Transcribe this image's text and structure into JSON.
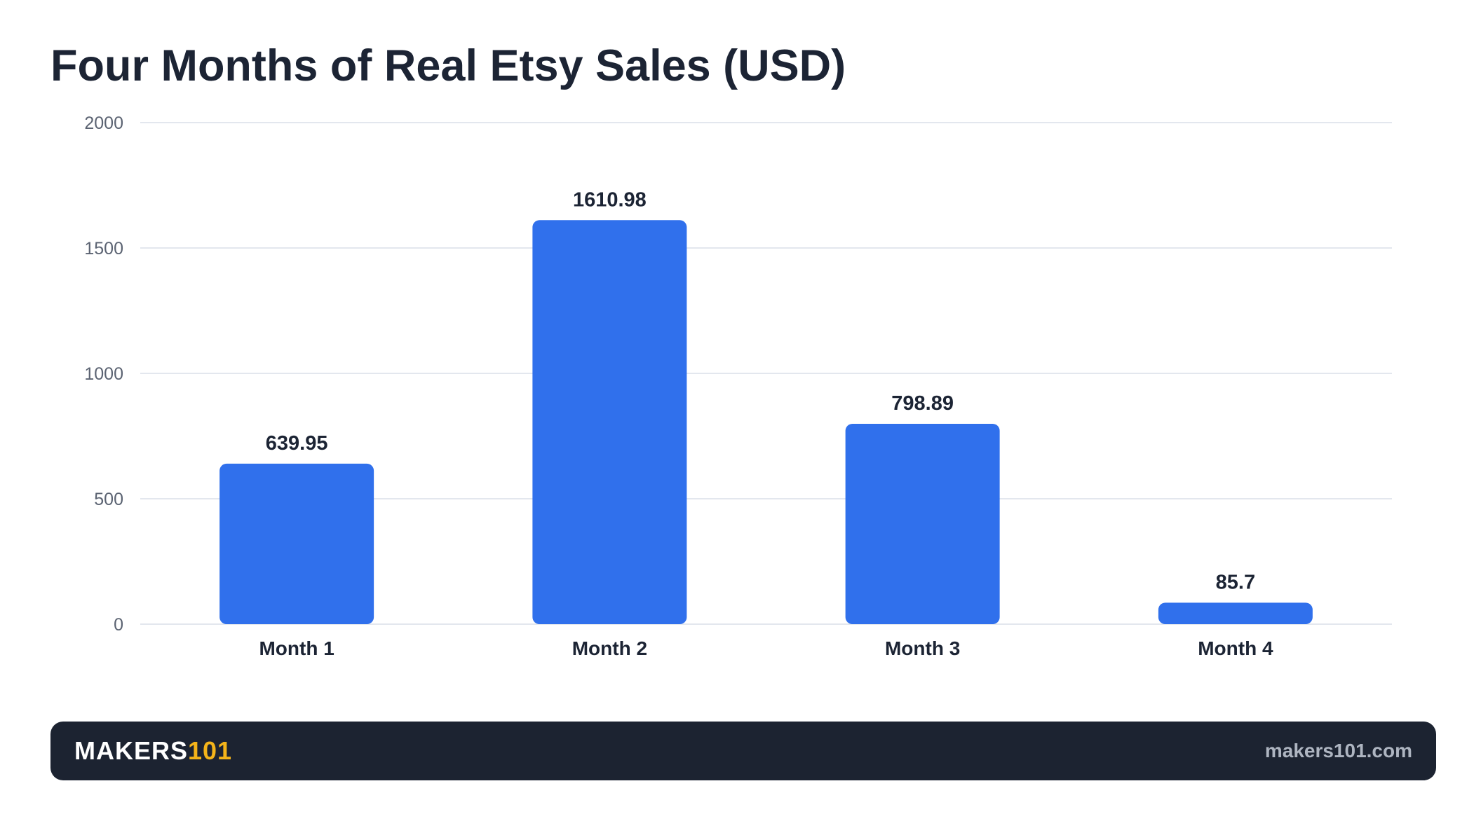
{
  "chart_data": {
    "type": "bar",
    "title": "Four Months of Real Etsy Sales (USD)",
    "categories": [
      "Month 1",
      "Month 2",
      "Month 3",
      "Month 4"
    ],
    "values": [
      639.95,
      1610.98,
      798.89,
      85.7
    ],
    "value_labels": [
      "639.95",
      "1610.98",
      "798.89",
      "85.7"
    ],
    "xlabel": "",
    "ylabel": "",
    "ylim": [
      0,
      2000
    ],
    "yticks": [
      0,
      500,
      1000,
      1500,
      2000
    ],
    "grid": true,
    "legend": "none",
    "bar_color": "#3070ec"
  },
  "footer": {
    "brand_main": "MAKERS",
    "brand_accent": "101",
    "website": "makers101.com"
  },
  "colors": {
    "title": "#1c2434",
    "footer_bg": "#1c2331",
    "brand_accent": "#f4b41a",
    "gridline": "#e3e7ee",
    "tick_label": "#5b6372"
  }
}
